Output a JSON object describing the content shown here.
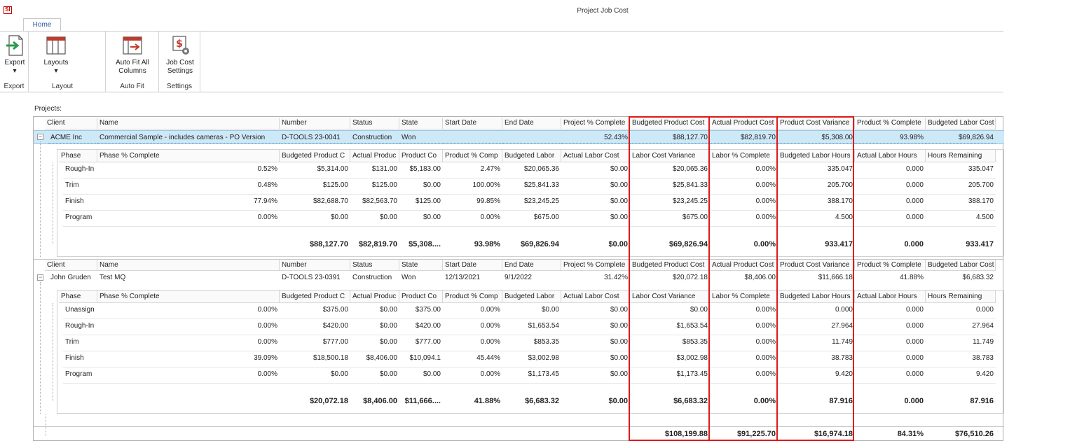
{
  "app": {
    "logo": "SI",
    "title": "Project Job Cost"
  },
  "ribbon": {
    "tab": "Home",
    "groups": [
      {
        "button": "Export",
        "label": "Export",
        "icon": "export-icon"
      },
      {
        "button": "Layouts",
        "label": "Layout",
        "icon": "layouts-icon"
      },
      {
        "button": "Auto Fit All Columns",
        "label": "Auto Fit",
        "icon": "auto-fit-icon"
      },
      {
        "button": "Job Cost Settings",
        "label": "Settings",
        "icon": "job-cost-settings-icon"
      }
    ]
  },
  "projects_label": "Projects:",
  "project_columns": [
    "Client",
    "Name",
    "Number",
    "Status",
    "State",
    "Start Date",
    "End Date",
    "Project % Complete",
    "Budgeted Product Cost",
    "Actual Product Cost",
    "Product Cost Variance",
    "Product % Complete",
    "Budgeted Labor Cost"
  ],
  "phase_columns": [
    "Phase",
    "Phase % Complete",
    "Budgeted Product C",
    "Actual Produc",
    "Product Co",
    "Product % Comp",
    "Budgeted Labor",
    "Actual Labor Cost",
    "Labor Cost Variance",
    "Labor % Complete",
    "Budgeted Labor Hours",
    "Actual Labor Hours",
    "Hours Remaining"
  ],
  "projects": [
    {
      "row": [
        "ACME Inc",
        "Commercial Sample - includes cameras - PO Version",
        "D-TOOLS 23-0041",
        "Construction",
        "Won",
        "",
        "",
        "52.43%",
        "$88,127.70",
        "$82,819.70",
        "$5,308.00",
        "93.98%",
        "$69,826.94"
      ],
      "phases": [
        [
          "Rough-In",
          "0.52%",
          "$5,314.00",
          "$131.00",
          "$5,183.00",
          "2.47%",
          "$20,065.36",
          "$0.00",
          "$20,065.36",
          "0.00%",
          "335.047",
          "0.000",
          "335.047"
        ],
        [
          "Trim",
          "0.48%",
          "$125.00",
          "$125.00",
          "$0.00",
          "100.00%",
          "$25,841.33",
          "$0.00",
          "$25,841.33",
          "0.00%",
          "205.700",
          "0.000",
          "205.700"
        ],
        [
          "Finish",
          "77.94%",
          "$82,688.70",
          "$82,563.70",
          "$125.00",
          "99.85%",
          "$23,245.25",
          "$0.00",
          "$23,245.25",
          "0.00%",
          "388.170",
          "0.000",
          "388.170"
        ],
        [
          "Program",
          "0.00%",
          "$0.00",
          "$0.00",
          "$0.00",
          "0.00%",
          "$675.00",
          "$0.00",
          "$675.00",
          "0.00%",
          "4.500",
          "0.000",
          "4.500"
        ]
      ],
      "totals": [
        "",
        "",
        "$88,127.70",
        "$82,819.70",
        "$5,308....",
        "93.98%",
        "$69,826.94",
        "$0.00",
        "$69,826.94",
        "0.00%",
        "933.417",
        "0.000",
        "933.417"
      ]
    },
    {
      "row": [
        "John Gruden",
        "Test MQ",
        "D-TOOLS 23-0391",
        "Construction",
        "Won",
        "12/13/2021",
        "9/1/2022",
        "31.42%",
        "$20,072.18",
        "$8,406.00",
        "$11,666.18",
        "41.88%",
        "$6,683.32"
      ],
      "phases": [
        [
          "Unassign",
          "0.00%",
          "$375.00",
          "$0.00",
          "$375.00",
          "0.00%",
          "$0.00",
          "$0.00",
          "$0.00",
          "0.00%",
          "0.000",
          "0.000",
          "0.000"
        ],
        [
          "Rough-In",
          "0.00%",
          "$420.00",
          "$0.00",
          "$420.00",
          "0.00%",
          "$1,653.54",
          "$0.00",
          "$1,653.54",
          "0.00%",
          "27.964",
          "0.000",
          "27.964"
        ],
        [
          "Trim",
          "0.00%",
          "$777.00",
          "$0.00",
          "$777.00",
          "0.00%",
          "$853.35",
          "$0.00",
          "$853.35",
          "0.00%",
          "11.749",
          "0.000",
          "11.749"
        ],
        [
          "Finish",
          "39.09%",
          "$18,500.18",
          "$8,406.00",
          "$10,094.1",
          "45.44%",
          "$3,002.98",
          "$0.00",
          "$3,002.98",
          "0.00%",
          "38.783",
          "0.000",
          "38.783"
        ],
        [
          "Program",
          "0.00%",
          "$0.00",
          "$0.00",
          "$0.00",
          "0.00%",
          "$1,173.45",
          "$0.00",
          "$1,173.45",
          "0.00%",
          "9.420",
          "0.000",
          "9.420"
        ]
      ],
      "totals": [
        "",
        "",
        "$20,072.18",
        "$8,406.00",
        "$11,666....",
        "41.88%",
        "$6,683.32",
        "$0.00",
        "$6,683.32",
        "0.00%",
        "87.916",
        "0.000",
        "87.916"
      ]
    }
  ],
  "grand_totals": [
    "",
    "",
    "",
    "",
    "",
    "",
    "",
    "",
    "$108,199.88",
    "$91,225.70",
    "$16,974.18",
    "84.31%",
    "$76,510.26"
  ],
  "colors": {
    "selected_row": "#cde8f7",
    "highlight_border": "#e01818",
    "ribbon_accent": "#2b579a"
  }
}
